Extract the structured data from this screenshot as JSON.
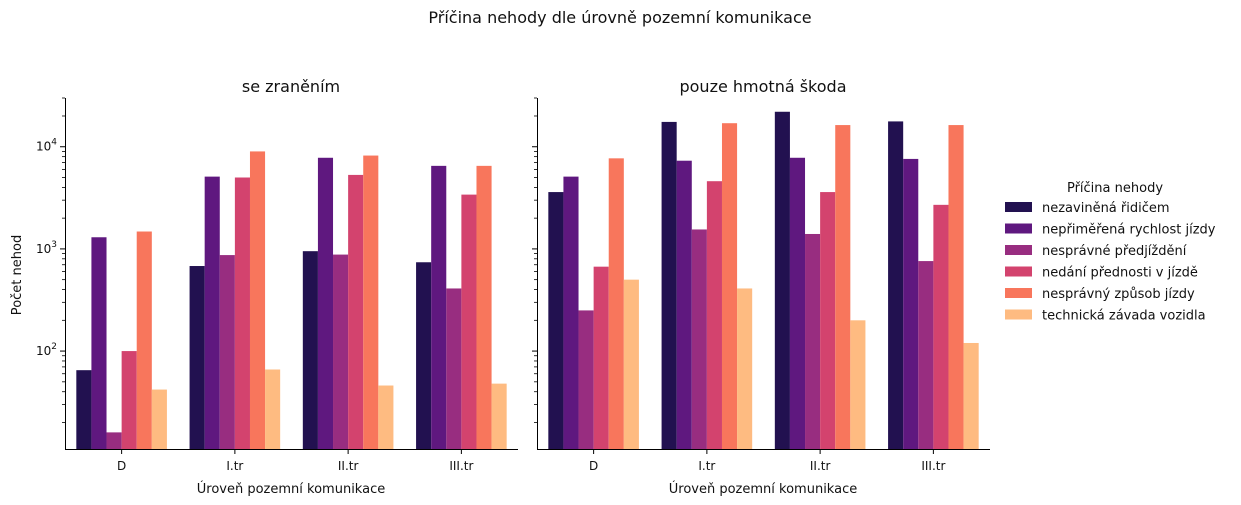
{
  "chart_data": {
    "type": "bar",
    "title": "Příčina nehody dle úrovně pozemní komunikace",
    "xlabel": "Úroveň pozemní komunikace",
    "ylabel": "Počet nehod",
    "yscale": "log",
    "ylim": [
      11,
      30000
    ],
    "legend": {
      "title": "Příčina nehody",
      "placement": "right"
    },
    "categories": [
      "D",
      "I.tr",
      "II.tr",
      "III.tr"
    ],
    "y_ticks": [
      {
        "value": 100,
        "base": "10",
        "exp": "2"
      },
      {
        "value": 1000,
        "base": "10",
        "exp": "3"
      },
      {
        "value": 10000,
        "base": "10",
        "exp": "4"
      }
    ],
    "series_meta": [
      {
        "name": "nezaviněná řidičem",
        "color": "#221150"
      },
      {
        "name": "nepřiměřená rychlost jízdy",
        "color": "#5f187f"
      },
      {
        "name": "nesprávné předjíždění",
        "color": "#982d80"
      },
      {
        "name": "nedání přednosti v jízdě",
        "color": "#d3436e"
      },
      {
        "name": "nesprávný způsob jízdy",
        "color": "#f8765c"
      },
      {
        "name": "technická závada vozidla",
        "color": "#febb81"
      }
    ],
    "panels": [
      {
        "title": "se zraněním",
        "series": [
          {
            "name": "nezaviněná řidičem",
            "values": [
              65,
              680,
              950,
              740
            ]
          },
          {
            "name": "nepřiměřená rychlost jízdy",
            "values": [
              1300,
              5100,
              7800,
              6500
            ]
          },
          {
            "name": "nesprávné předjíždění",
            "values": [
              16,
              870,
              880,
              410
            ]
          },
          {
            "name": "nedání přednosti v jízdě",
            "values": [
              100,
              5000,
              5300,
              3400
            ]
          },
          {
            "name": "nesprávný způsob jízdy",
            "values": [
              1480,
              9000,
              8200,
              6500
            ]
          },
          {
            "name": "technická závada vozidla",
            "values": [
              42,
              66,
              46,
              48
            ]
          }
        ]
      },
      {
        "title": "pouze hmotná škoda",
        "series": [
          {
            "name": "nezaviněná řidičem",
            "values": [
              3600,
              17500,
              22000,
              17700
            ]
          },
          {
            "name": "nepřiměřená rychlost jízdy",
            "values": [
              5100,
              7300,
              7800,
              7600
            ]
          },
          {
            "name": "nesprávné předjíždění",
            "values": [
              250,
              1550,
              1400,
              760
            ]
          },
          {
            "name": "nedání přednosti v jízdě",
            "values": [
              670,
              4600,
              3600,
              2700
            ]
          },
          {
            "name": "nesprávný způsob jízdy",
            "values": [
              7700,
              17000,
              16300,
              16300
            ]
          },
          {
            "name": "technická závada vozidla",
            "values": [
              500,
              410,
              200,
              120
            ]
          }
        ]
      }
    ]
  }
}
